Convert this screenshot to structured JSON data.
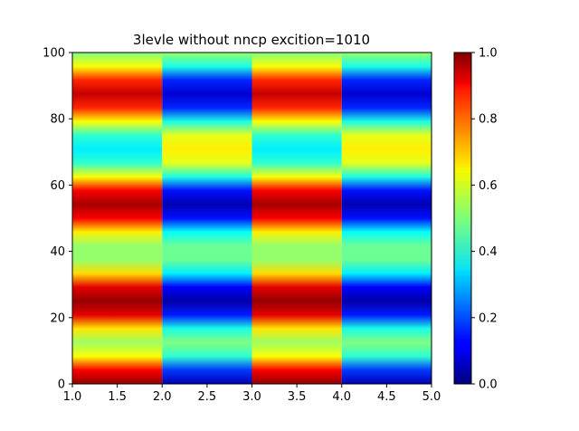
{
  "chart_data": {
    "type": "heatmap",
    "title": "3levle without nncp excition=1010",
    "xlabel": "",
    "ylabel": "",
    "xlim": [
      1.0,
      5.0
    ],
    "ylim": [
      0,
      100
    ],
    "x_ticks": [
      "1.0",
      "1.5",
      "2.0",
      "2.5",
      "3.0",
      "3.5",
      "4.0",
      "4.5",
      "5.0"
    ],
    "y_ticks": [
      "0",
      "20",
      "40",
      "60",
      "80",
      "100"
    ],
    "colormap": "jet",
    "colorbar": {
      "range": [
        0.0,
        1.0
      ],
      "ticks": [
        "0.0",
        "0.2",
        "0.4",
        "0.6",
        "0.8",
        "1.0"
      ]
    },
    "columns": [
      {
        "x_range": [
          1.0,
          2.0
        ],
        "values_bottom_to_top": [
          0.98,
          0.88,
          0.62,
          0.53,
          0.65,
          0.9,
          0.98,
          0.9,
          0.66,
          0.52,
          0.52,
          0.64,
          0.88,
          0.96,
          0.88,
          0.62,
          0.42,
          0.36,
          0.42,
          0.62,
          0.84,
          0.93,
          0.84,
          0.62,
          0.5
        ]
      },
      {
        "x_range": [
          2.0,
          3.0
        ],
        "values_bottom_to_top": [
          0.05,
          0.18,
          0.42,
          0.5,
          0.4,
          0.15,
          0.04,
          0.12,
          0.36,
          0.48,
          0.48,
          0.38,
          0.14,
          0.05,
          0.14,
          0.4,
          0.6,
          0.64,
          0.6,
          0.4,
          0.16,
          0.08,
          0.16,
          0.4,
          0.52
        ]
      },
      {
        "x_range": [
          3.0,
          4.0
        ],
        "values_bottom_to_top": [
          0.98,
          0.88,
          0.62,
          0.53,
          0.65,
          0.9,
          0.98,
          0.9,
          0.66,
          0.52,
          0.52,
          0.64,
          0.88,
          0.96,
          0.88,
          0.62,
          0.42,
          0.36,
          0.42,
          0.62,
          0.84,
          0.93,
          0.84,
          0.62,
          0.5
        ]
      },
      {
        "x_range": [
          4.0,
          5.0
        ],
        "values_bottom_to_top": [
          0.05,
          0.18,
          0.42,
          0.5,
          0.4,
          0.15,
          0.04,
          0.12,
          0.36,
          0.48,
          0.48,
          0.38,
          0.14,
          0.05,
          0.14,
          0.4,
          0.6,
          0.64,
          0.6,
          0.4,
          0.16,
          0.08,
          0.16,
          0.4,
          0.52
        ]
      }
    ]
  }
}
